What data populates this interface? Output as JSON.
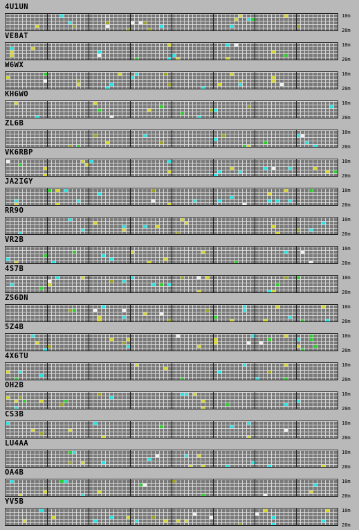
{
  "bands": [
    "10m",
    "20m"
  ],
  "colors": {
    "background": "#b9b9b9",
    "grid": "#7a7a7a",
    "cyan": "#2ee0e0",
    "yellow": "#d4d43a",
    "green": "#2ecc2e",
    "olive": "#9aa02a",
    "white": "#f0f0f0"
  },
  "beacons": [
    {
      "callsign": "4U1UN"
    },
    {
      "callsign": "VE8AT"
    },
    {
      "callsign": "W6WX"
    },
    {
      "callsign": "KH6WO"
    },
    {
      "callsign": "ZL6B"
    },
    {
      "callsign": "VK6RBP"
    },
    {
      "callsign": "JA2IGY"
    },
    {
      "callsign": "RR9O"
    },
    {
      "callsign": "VR2B"
    },
    {
      "callsign": "4S7B"
    },
    {
      "callsign": "ZS6DN"
    },
    {
      "callsign": "5Z4B"
    },
    {
      "callsign": "4X6TU"
    },
    {
      "callsign": "OH2B"
    },
    {
      "callsign": "CS3B"
    },
    {
      "callsign": "LU4AA"
    },
    {
      "callsign": "OA4B"
    },
    {
      "callsign": "YV5B"
    }
  ]
}
